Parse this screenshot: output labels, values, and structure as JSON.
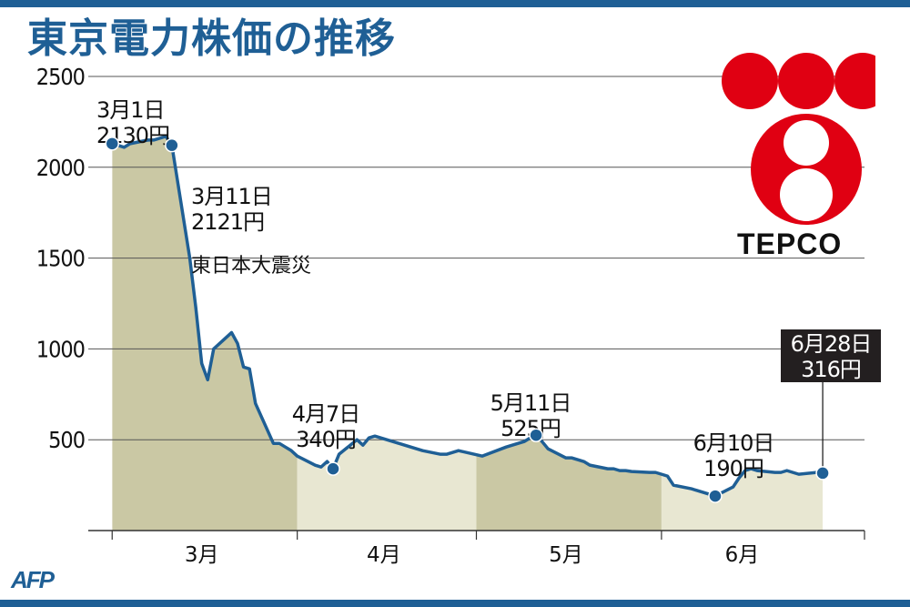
{
  "title": "東京電力株価の推移",
  "credit": "AFP",
  "logo": {
    "text": "TEPCO",
    "color": "#e00012"
  },
  "colors": {
    "accent": "#1f5f95",
    "band_dark": "#cac8a4",
    "band_light": "#e8e7d2",
    "grid": "#555555"
  },
  "chart_data": {
    "type": "area",
    "title": "東京電力株価の推移",
    "xlabel": "",
    "ylabel": "",
    "unit": "円",
    "ylim": [
      0,
      2500
    ],
    "yticks": [
      500,
      1000,
      1500,
      2000,
      2500
    ],
    "xlim": [
      "2011-02-25",
      "2011-07-05"
    ],
    "months": [
      {
        "label": "3月",
        "start": "2011-03-01",
        "end": "2011-03-31"
      },
      {
        "label": "4月",
        "start": "2011-04-01",
        "end": "2011-04-30"
      },
      {
        "label": "5月",
        "start": "2011-05-01",
        "end": "2011-05-31"
      },
      {
        "label": "6月",
        "start": "2011-06-01",
        "end": "2011-06-28"
      }
    ],
    "series": [
      {
        "points": [
          [
            "2011-03-01",
            2130
          ],
          [
            "2011-03-02",
            2120
          ],
          [
            "2011-03-03",
            2110
          ],
          [
            "2011-03-04",
            2130
          ],
          [
            "2011-03-07",
            2150
          ],
          [
            "2011-03-08",
            2150
          ],
          [
            "2011-03-09",
            2160
          ],
          [
            "2011-03-10",
            2170
          ],
          [
            "2011-03-11",
            2121
          ],
          [
            "2011-03-14",
            1500
          ],
          [
            "2011-03-15",
            1230
          ],
          [
            "2011-03-16",
            920
          ],
          [
            "2011-03-17",
            830
          ],
          [
            "2011-03-18",
            1000
          ],
          [
            "2011-03-21",
            1090
          ],
          [
            "2011-03-22",
            1030
          ],
          [
            "2011-03-23",
            900
          ],
          [
            "2011-03-24",
            890
          ],
          [
            "2011-03-25",
            700
          ],
          [
            "2011-03-28",
            480
          ],
          [
            "2011-03-29",
            480
          ],
          [
            "2011-03-30",
            460
          ],
          [
            "2011-03-31",
            440
          ],
          [
            "2011-04-01",
            410
          ],
          [
            "2011-04-04",
            360
          ],
          [
            "2011-04-05",
            350
          ],
          [
            "2011-04-06",
            380
          ],
          [
            "2011-04-07",
            340
          ],
          [
            "2011-04-08",
            420
          ],
          [
            "2011-04-11",
            500
          ],
          [
            "2011-04-12",
            470
          ],
          [
            "2011-04-13",
            510
          ],
          [
            "2011-04-14",
            520
          ],
          [
            "2011-04-15",
            510
          ],
          [
            "2011-04-18",
            480
          ],
          [
            "2011-04-19",
            470
          ],
          [
            "2011-04-20",
            460
          ],
          [
            "2011-04-21",
            450
          ],
          [
            "2011-04-22",
            440
          ],
          [
            "2011-04-25",
            420
          ],
          [
            "2011-04-26",
            420
          ],
          [
            "2011-04-27",
            430
          ],
          [
            "2011-04-28",
            440
          ],
          [
            "2011-05-02",
            410
          ],
          [
            "2011-05-06",
            460
          ],
          [
            "2011-05-09",
            490
          ],
          [
            "2011-05-10",
            510
          ],
          [
            "2011-05-11",
            525
          ],
          [
            "2011-05-12",
            490
          ],
          [
            "2011-05-13",
            450
          ],
          [
            "2011-05-16",
            400
          ],
          [
            "2011-05-17",
            400
          ],
          [
            "2011-05-18",
            390
          ],
          [
            "2011-05-19",
            380
          ],
          [
            "2011-05-20",
            360
          ],
          [
            "2011-05-23",
            340
          ],
          [
            "2011-05-24",
            340
          ],
          [
            "2011-05-25",
            330
          ],
          [
            "2011-05-26",
            330
          ],
          [
            "2011-05-27",
            325
          ],
          [
            "2011-05-30",
            320
          ],
          [
            "2011-05-31",
            320
          ],
          [
            "2011-06-01",
            310
          ],
          [
            "2011-06-02",
            300
          ],
          [
            "2011-06-03",
            250
          ],
          [
            "2011-06-06",
            230
          ],
          [
            "2011-06-07",
            220
          ],
          [
            "2011-06-08",
            210
          ],
          [
            "2011-06-09",
            200
          ],
          [
            "2011-06-10",
            190
          ],
          [
            "2011-06-13",
            240
          ],
          [
            "2011-06-14",
            290
          ],
          [
            "2011-06-15",
            330
          ],
          [
            "2011-06-16",
            340
          ],
          [
            "2011-06-17",
            330
          ],
          [
            "2011-06-20",
            320
          ],
          [
            "2011-06-21",
            320
          ],
          [
            "2011-06-22",
            330
          ],
          [
            "2011-06-23",
            320
          ],
          [
            "2011-06-24",
            310
          ],
          [
            "2011-06-27",
            320
          ],
          [
            "2011-06-28",
            316
          ]
        ]
      }
    ],
    "annotations": [
      {
        "date": "2011-03-01",
        "value": 2130,
        "line1": "3月1日",
        "line2": "2130円",
        "line3": ""
      },
      {
        "date": "2011-03-11",
        "value": 2121,
        "line1": "3月11日",
        "line2": "2121円",
        "line3": "東日本大震災"
      },
      {
        "date": "2011-04-07",
        "value": 340,
        "line1": "4月7日",
        "line2": "340円",
        "line3": ""
      },
      {
        "date": "2011-05-11",
        "value": 525,
        "line1": "5月11日",
        "line2": "525円",
        "line3": ""
      },
      {
        "date": "2011-06-10",
        "value": 190,
        "line1": "6月10日",
        "line2": "190円",
        "line3": ""
      },
      {
        "date": "2011-06-28",
        "value": 316,
        "line1": "6月28日",
        "line2": "316円",
        "line3": ""
      }
    ]
  }
}
